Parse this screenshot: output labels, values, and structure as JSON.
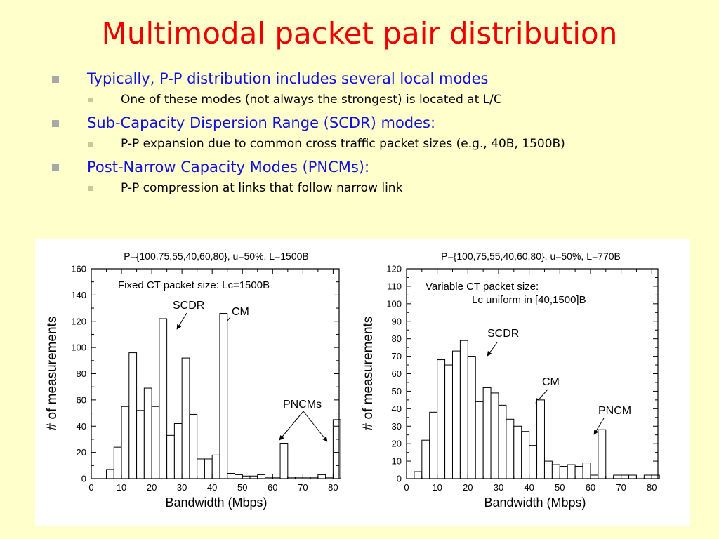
{
  "slide": {
    "title": "Multimodal packet pair distribution",
    "bullets": [
      {
        "text": "Typically, P-P distribution includes several local modes",
        "subs": [
          "One of these modes (not always the strongest) is located at L/C"
        ]
      },
      {
        "text": "Sub-Capacity Dispersion Range (SCDR) modes:",
        "subs": [
          "P-P expansion due to common cross traffic packet sizes (e.g., 40B, 1500B)"
        ]
      },
      {
        "text": "Post-Narrow Capacity Modes (PNCMs):",
        "subs": [
          "P-P compression at links that follow narrow link"
        ]
      }
    ]
  },
  "colors": {
    "title": "#EE0000",
    "bullet_text": "#1010E0",
    "background": "#FFFFCC"
  },
  "chart_data": [
    {
      "type": "bar",
      "title": "P={100,75,55,40,60,80}, u=50%, L=1500B",
      "xlabel": "Bandwidth (Mbps)",
      "ylabel": "# of measurements",
      "xlim": [
        0,
        82
      ],
      "ylim": [
        0,
        160
      ],
      "xticks": [
        0,
        10,
        20,
        30,
        40,
        50,
        60,
        70,
        80
      ],
      "yticks": [
        0,
        20,
        40,
        60,
        80,
        100,
        120,
        140,
        160
      ],
      "bin_width": 2.5,
      "bin_starts": [
        2.5,
        5,
        7.5,
        10,
        12.5,
        15,
        17.5,
        20,
        22.5,
        25,
        27.5,
        30,
        32.5,
        35,
        37.5,
        40,
        42.5,
        45,
        47.5,
        50,
        52.5,
        55,
        57.5,
        60,
        62.5,
        65,
        67.5,
        70,
        72.5,
        75,
        77.5,
        80
      ],
      "values": [
        0,
        7,
        24,
        55,
        96,
        52,
        69,
        55,
        122,
        33,
        42,
        92,
        49,
        15,
        15,
        18,
        126,
        4,
        3,
        2,
        2,
        3,
        1,
        1,
        27,
        1,
        1,
        1,
        1,
        3,
        1,
        45
      ],
      "annotations": [
        "Fixed CT packet size: Lc=1500B",
        "SCDR",
        "CM",
        "PNCMs"
      ],
      "grid": false
    },
    {
      "type": "bar",
      "title": "P={100,75,55,40,60,80}, u=50%, L=770B",
      "xlabel": "Bandwidth (Mbps)",
      "ylabel": "# of measurements",
      "xlim": [
        0,
        82
      ],
      "ylim": [
        0,
        120
      ],
      "xticks": [
        0,
        10,
        20,
        30,
        40,
        50,
        60,
        70,
        80
      ],
      "yticks": [
        0,
        10,
        20,
        30,
        40,
        50,
        60,
        70,
        80,
        90,
        100,
        110,
        120
      ],
      "bin_width": 2.5,
      "bin_starts": [
        2.5,
        5,
        7.5,
        10,
        12.5,
        15,
        17.5,
        20,
        22.5,
        25,
        27.5,
        30,
        32.5,
        35,
        37.5,
        40,
        42.5,
        45,
        47.5,
        50,
        52.5,
        55,
        57.5,
        60,
        62.5,
        65,
        67.5,
        70,
        72.5,
        75,
        77.5,
        80
      ],
      "values": [
        4,
        22,
        38,
        68,
        65,
        73,
        79,
        70,
        44,
        52,
        49,
        42,
        34,
        30,
        27,
        19,
        45,
        10,
        8,
        7,
        8,
        7,
        9,
        2,
        28,
        1,
        2,
        2,
        2,
        1,
        2,
        2
      ],
      "annotations": [
        "Variable CT packet size:",
        "Lc uniform in [40,1500]B",
        "SCDR",
        "CM",
        "PNCM"
      ],
      "grid": false
    }
  ]
}
